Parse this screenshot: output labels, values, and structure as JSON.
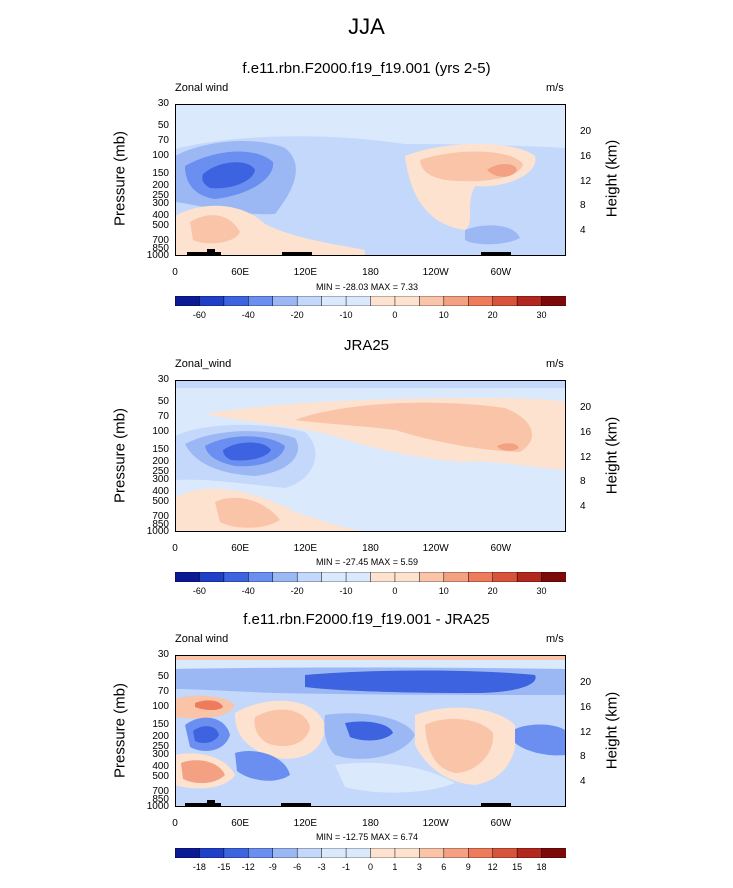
{
  "figure_title": "JJA",
  "chart_data": [
    {
      "type": "contour",
      "title": "f.e11.rbn.F2000.f19_f19.001 (yrs 2-5)",
      "left_label": "Zonal wind",
      "right_label": "m/s",
      "ylabel": "Pressure (mb)",
      "ylabel_right": "Height (km)",
      "xticks": [
        "0",
        "60E",
        "120E",
        "180",
        "120W",
        "60W"
      ],
      "xtick_lons": [
        0,
        60,
        120,
        180,
        240,
        300
      ],
      "xlim": [
        0,
        360
      ],
      "yticks_pressure": [
        "30",
        "50",
        "70",
        "100",
        "150",
        "200",
        "250",
        "300",
        "400",
        "500",
        "700",
        "850",
        "1000"
      ],
      "yticks_height": [
        "20",
        "16",
        "12",
        "8",
        "4"
      ],
      "stats": "MIN = -28.03  MAX =  7.33",
      "min": -28.03,
      "max": 7.33,
      "colorbar_labels": [
        "-60",
        "-40",
        "-20",
        "-10",
        "0",
        "10",
        "20",
        "30"
      ]
    },
    {
      "type": "contour",
      "title": "JRA25",
      "left_label": "Zonal_wind",
      "right_label": "m/s",
      "ylabel": "Pressure (mb)",
      "ylabel_right": "Height (km)",
      "xticks": [
        "0",
        "60E",
        "120E",
        "180",
        "120W",
        "60W"
      ],
      "xtick_lons": [
        0,
        60,
        120,
        180,
        240,
        300
      ],
      "xlim": [
        0,
        360
      ],
      "yticks_pressure": [
        "30",
        "50",
        "70",
        "100",
        "150",
        "200",
        "250",
        "300",
        "400",
        "500",
        "700",
        "850",
        "1000"
      ],
      "yticks_height": [
        "20",
        "16",
        "12",
        "8",
        "4"
      ],
      "stats": "MIN = -27.45  MAX =  5.59",
      "min": -27.45,
      "max": 5.59,
      "colorbar_labels": [
        "-60",
        "-40",
        "-20",
        "-10",
        "0",
        "10",
        "20",
        "30"
      ]
    },
    {
      "type": "contour",
      "title": "f.e11.rbn.F2000.f19_f19.001 - JRA25",
      "left_label": "Zonal wind",
      "right_label": "m/s",
      "ylabel": "Pressure (mb)",
      "ylabel_right": "Height (km)",
      "xticks": [
        "0",
        "60E",
        "120E",
        "180",
        "120W",
        "60W"
      ],
      "xtick_lons": [
        0,
        60,
        120,
        180,
        240,
        300
      ],
      "xlim": [
        0,
        360
      ],
      "yticks_pressure": [
        "30",
        "50",
        "70",
        "100",
        "150",
        "200",
        "250",
        "300",
        "400",
        "500",
        "700",
        "850",
        "1000"
      ],
      "yticks_height": [
        "20",
        "16",
        "12",
        "8",
        "4"
      ],
      "stats": "MIN = -12.75  MAX =  6.74",
      "min": -12.75,
      "max": 6.74,
      "colorbar_labels": [
        "-18",
        "-15",
        "-12",
        "-9",
        "-6",
        "-3",
        "-1",
        "0",
        "1",
        "3",
        "6",
        "9",
        "12",
        "15",
        "18"
      ]
    }
  ],
  "colors": {
    "blue_dark": "#0b1a94",
    "blue_1": "#1f3fc8",
    "blue_2": "#3d63e0",
    "blue_3": "#6a8ff0",
    "blue_4": "#9bb8f5",
    "blue_5": "#c4d8fb",
    "blue_6": "#dbe9fd",
    "red_1": "#fde2cf",
    "red_2": "#f9c4a7",
    "red_3": "#f4a183",
    "red_4": "#ee7b5c",
    "red_5": "#d8533b",
    "red_6": "#b2281e",
    "red_dark": "#7c0a0a"
  }
}
